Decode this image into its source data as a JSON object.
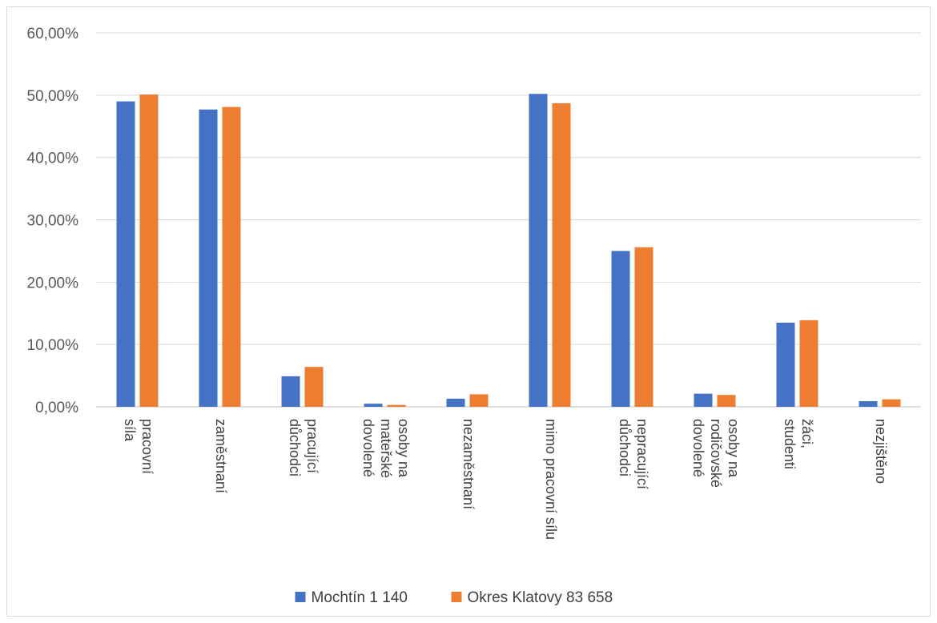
{
  "chart_data": {
    "type": "bar",
    "title": "",
    "xlabel": "",
    "ylabel": "",
    "ylim": [
      0,
      60
    ],
    "yticks": [
      "0,00%",
      "10,00%",
      "20,00%",
      "30,00%",
      "40,00%",
      "50,00%",
      "60,00%"
    ],
    "grid": true,
    "legend_position": "bottom",
    "categories": [
      [
        "pracovní",
        "síla"
      ],
      [
        "zaměstnaní"
      ],
      [
        "pracující",
        "důchodci"
      ],
      [
        "osoby na",
        "mateřské",
        "dovolené"
      ],
      [
        "nezaměstnaní"
      ],
      [
        "mimo pracovní sílu"
      ],
      [
        "nepracující",
        "důchodci"
      ],
      [
        "osoby na",
        "rodičovské",
        "dovolené"
      ],
      [
        "žáci,",
        "studenti"
      ],
      [
        "nezjištěno"
      ]
    ],
    "series": [
      {
        "name": "Mochtín 1 140",
        "color": "#4472c4",
        "values": [
          49.0,
          47.7,
          4.9,
          0.5,
          1.3,
          50.2,
          25.0,
          2.1,
          13.5,
          0.9
        ]
      },
      {
        "name": "Okres Klatovy 83 658",
        "color": "#ed7d31",
        "values": [
          50.1,
          48.1,
          6.4,
          0.3,
          2.0,
          48.7,
          25.6,
          1.9,
          13.9,
          1.2
        ]
      }
    ]
  }
}
